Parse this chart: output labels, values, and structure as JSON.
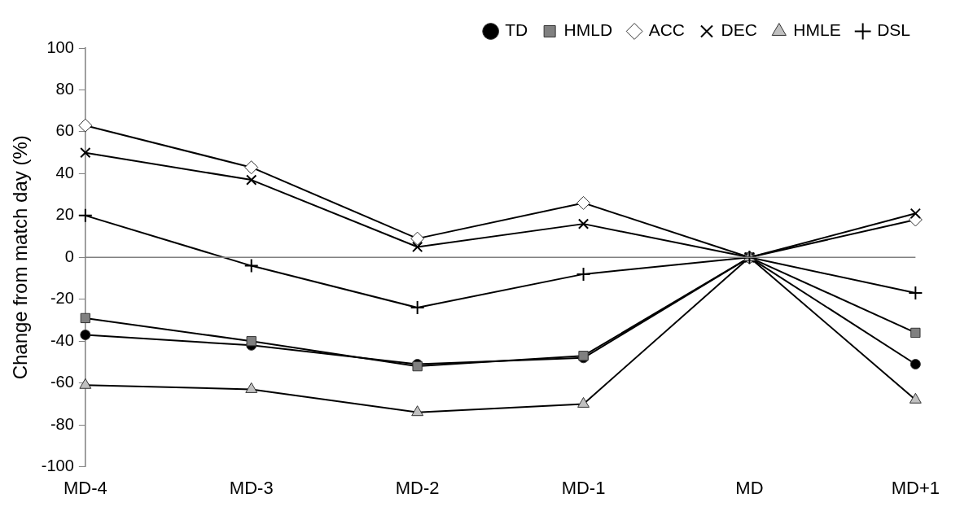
{
  "chart_data": {
    "type": "line",
    "ylabel": "Change from match day (%)",
    "categories": [
      "MD-4",
      "MD-3",
      "MD-2",
      "MD-1",
      "MD",
      "MD+1"
    ],
    "series": [
      {
        "name": "TD",
        "color": "#000000",
        "marker": "circle",
        "values": [
          -37,
          -42,
          -51,
          -48,
          0,
          -51
        ]
      },
      {
        "name": "HMLD",
        "color": "#808080",
        "marker": "square",
        "values": [
          -29,
          -40,
          -52,
          -47,
          0,
          -36
        ]
      },
      {
        "name": "ACC",
        "color": "#ffffff",
        "marker": "diamond",
        "values": [
          63,
          43,
          9,
          26,
          0,
          18
        ]
      },
      {
        "name": "DEC",
        "color": "#000000",
        "marker": "cross",
        "values": [
          50,
          37,
          5,
          16,
          0,
          21
        ]
      },
      {
        "name": "HMLE",
        "color": "#c0c0c0",
        "marker": "triangle",
        "values": [
          -61,
          -63,
          -74,
          -70,
          0,
          -68
        ]
      },
      {
        "name": "DSL",
        "color": "#000000",
        "marker": "plus",
        "values": [
          20,
          -4,
          -24,
          -8,
          0,
          -17
        ]
      }
    ],
    "ylim": [
      -100,
      100
    ],
    "yticks": [
      -100,
      -80,
      -60,
      -40,
      -20,
      0,
      20,
      40,
      60,
      80,
      100
    ],
    "ref_lines": [
      {
        "axis": "y",
        "value": 0,
        "color": "#808080"
      }
    ],
    "grid": false,
    "legend": "top right"
  }
}
